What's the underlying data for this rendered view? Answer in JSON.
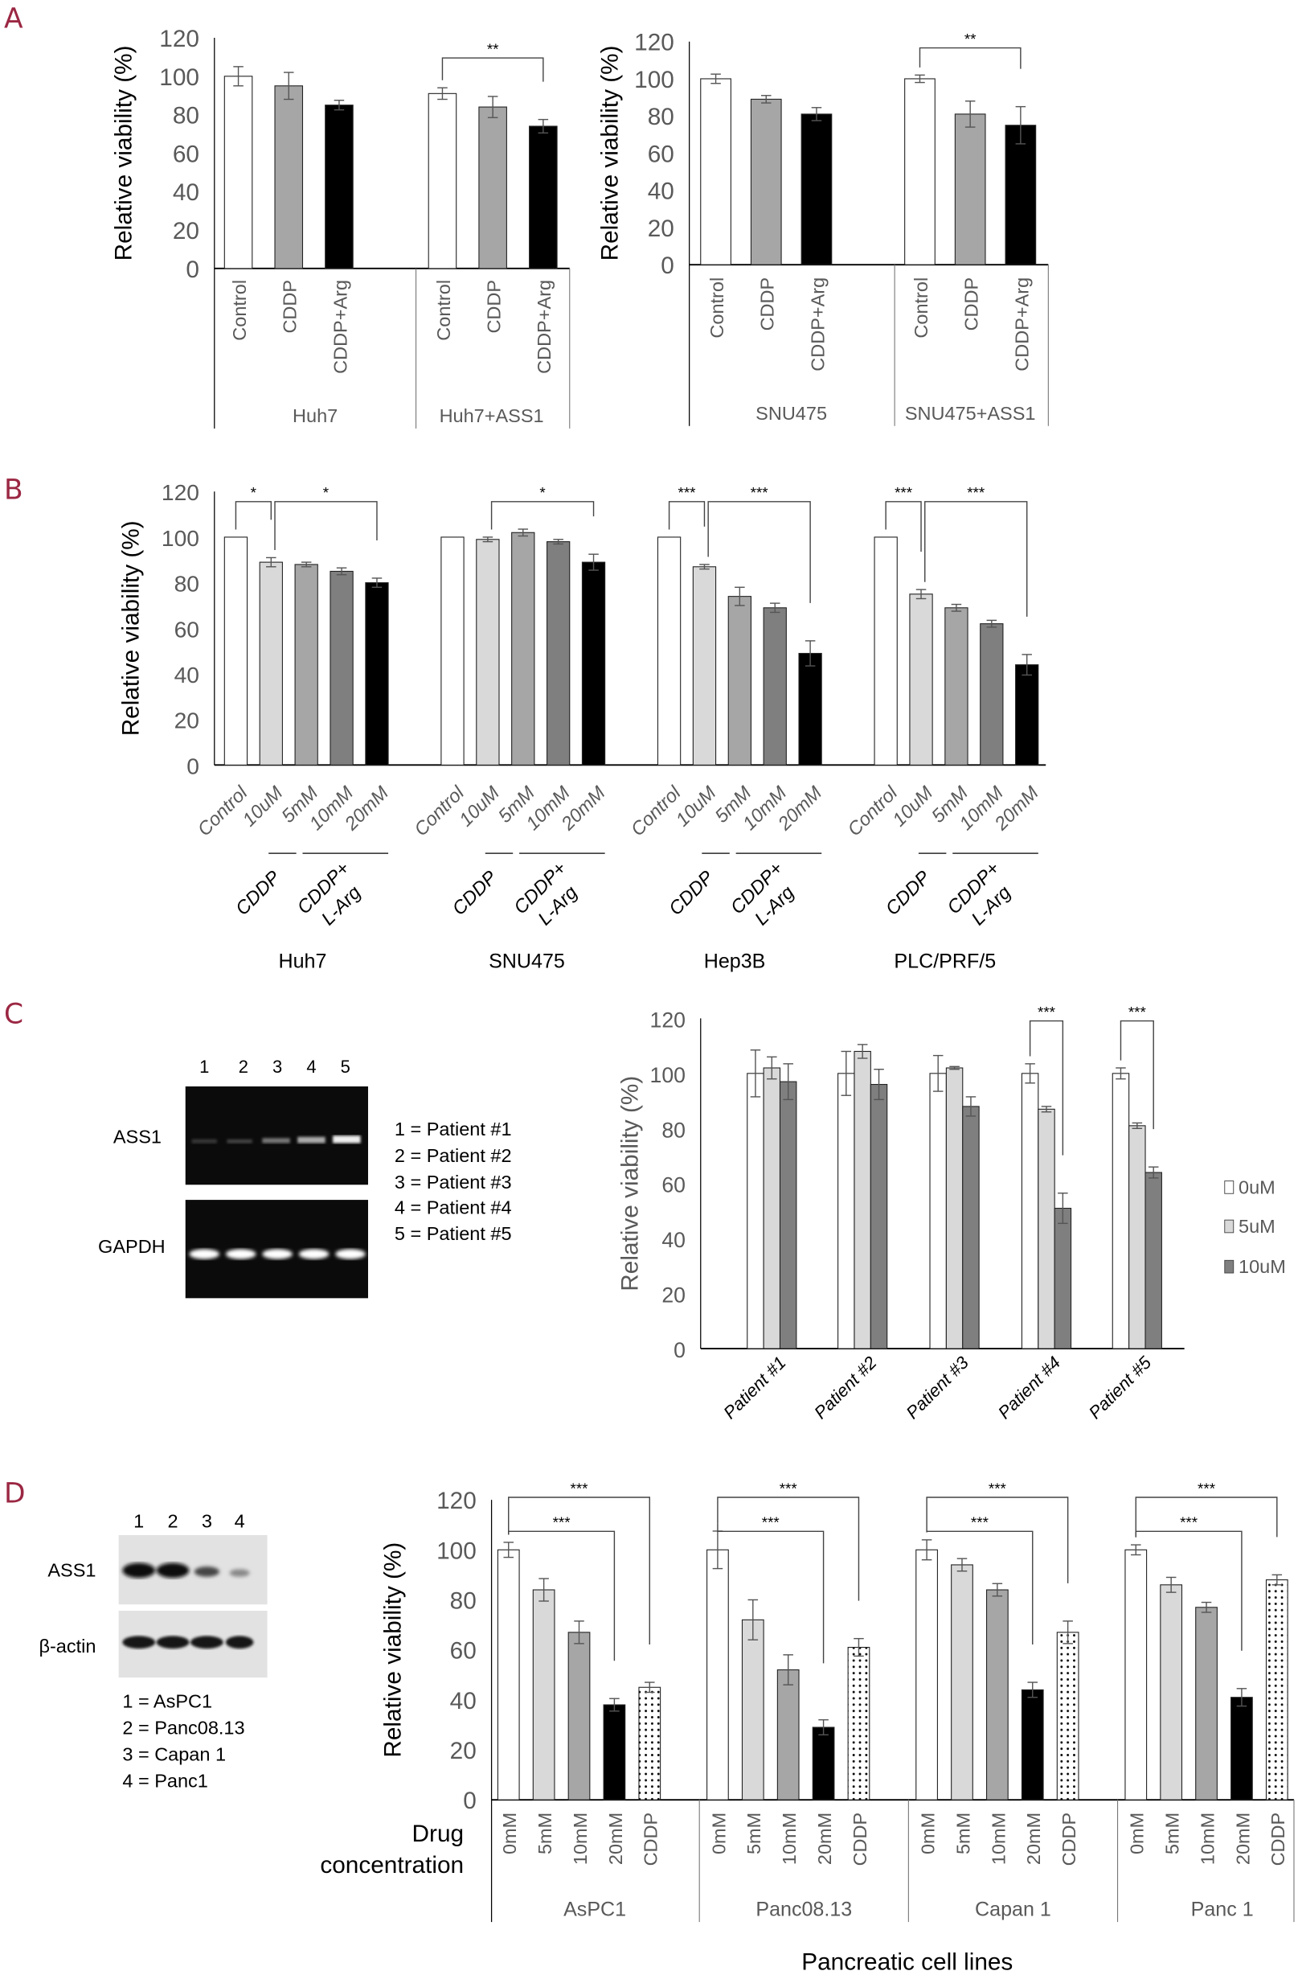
{
  "panels": {
    "labels": [
      "A",
      "B",
      "C",
      "D"
    ]
  },
  "gel_c": {
    "lanes": [
      "1",
      "2",
      "3",
      "4",
      "5"
    ],
    "rows": [
      "ASS1",
      "GAPDH"
    ],
    "legend": [
      "1 = Patient #1",
      "2 = Patient #2",
      "3 = Patient #3",
      "4 = Patient #4",
      "5 = Patient #5"
    ]
  },
  "blot_d": {
    "lanes": [
      "1",
      "2",
      "3",
      "4"
    ],
    "rows": [
      "ASS1",
      "β-actin"
    ],
    "legend": [
      "1 = AsPC1",
      "2 = Panc08.13",
      "3 = Capan 1",
      "4 = Panc1"
    ]
  },
  "chart_data": [
    {
      "id": "A-left",
      "type": "bar",
      "ylabel": "Relative viability (%)",
      "ylim": [
        0,
        120
      ],
      "yticks": [
        "0",
        "20",
        "40",
        "60",
        "80",
        "100",
        "120"
      ],
      "categories": [
        "Control",
        "CDDP",
        "CDDP+Arg"
      ],
      "colors": [
        "#ffffff",
        "#a6a6a6",
        "#000000"
      ],
      "groups": [
        {
          "name": "Huh7",
          "values": [
            100,
            95,
            85
          ],
          "errors": [
            5,
            7,
            2.5
          ]
        },
        {
          "name": "Huh7+ASS1",
          "values": [
            91,
            84,
            74
          ],
          "errors": [
            3,
            5.5,
            3.5
          ]
        }
      ],
      "significance": [
        {
          "group": 1,
          "from": 0,
          "to": 2,
          "label": "**"
        }
      ]
    },
    {
      "id": "A-right",
      "type": "bar",
      "ylabel": "Relative viability (%)",
      "ylim": [
        0,
        120
      ],
      "yticks": [
        "0",
        "20",
        "40",
        "60",
        "80",
        "100",
        "120"
      ],
      "categories": [
        "Control",
        "CDDP",
        "CDDP+Arg"
      ],
      "colors": [
        "#ffffff",
        "#a6a6a6",
        "#000000"
      ],
      "groups": [
        {
          "name": "SNU475",
          "values": [
            100,
            89,
            81
          ],
          "errors": [
            2.5,
            2,
            3.5
          ]
        },
        {
          "name": "SNU475+ASS1",
          "values": [
            100,
            81,
            75
          ],
          "errors": [
            2,
            7,
            10
          ]
        }
      ],
      "significance": [
        {
          "group": 1,
          "from": 0,
          "to": 2,
          "label": "**"
        }
      ]
    },
    {
      "id": "B",
      "type": "bar",
      "ylabel": "Relative viability (%)",
      "ylim": [
        0,
        120
      ],
      "yticks": [
        "0",
        "20",
        "40",
        "60",
        "80",
        "100",
        "120"
      ],
      "categories": [
        "Control",
        "10uM",
        "5mM",
        "10mM",
        "20mM"
      ],
      "treatments": {
        "cddp": "CDDP",
        "combo": [
          "CDDP+",
          "L-Arg"
        ]
      },
      "colors": [
        "#ffffff",
        "#d9d9d9",
        "#a6a6a6",
        "#7f7f7f",
        "#000000"
      ],
      "groups": [
        {
          "name": "Huh7",
          "values": [
            100,
            89,
            88,
            85,
            80
          ],
          "errors": [
            0,
            2,
            1,
            1.5,
            2
          ]
        },
        {
          "name": "SNU475",
          "values": [
            100,
            99,
            102,
            98,
            89
          ],
          "errors": [
            0,
            1,
            1.5,
            1,
            3.5
          ]
        },
        {
          "name": "Hep3B",
          "values": [
            100,
            87,
            74,
            69,
            49
          ],
          "errors": [
            0,
            1,
            4,
            2,
            5.5
          ]
        },
        {
          "name": "PLC/PRF/5",
          "values": [
            100,
            75,
            69,
            62,
            44
          ],
          "errors": [
            0,
            2,
            1.5,
            1.5,
            4.5
          ]
        }
      ],
      "significance": [
        {
          "group": 0,
          "from": 0,
          "to": 1,
          "label": "*"
        },
        {
          "group": 0,
          "from": 1,
          "to": 4,
          "label": "*"
        },
        {
          "group": 1,
          "from": 1,
          "to": 4,
          "label": "*"
        },
        {
          "group": 2,
          "from": 0,
          "to": 1,
          "label": "***"
        },
        {
          "group": 2,
          "from": 1,
          "to": 4,
          "label": "***"
        },
        {
          "group": 3,
          "from": 0,
          "to": 1,
          "label": "***"
        },
        {
          "group": 3,
          "from": 1,
          "to": 4,
          "label": "***"
        }
      ]
    },
    {
      "id": "C",
      "type": "bar",
      "ylabel": "Relative viability (%)",
      "ylim": [
        0,
        120
      ],
      "yticks": [
        "0",
        "20",
        "40",
        "60",
        "80",
        "100",
        "120"
      ],
      "categories": [
        "0uM",
        "5uM",
        "10uM"
      ],
      "legend": [
        "0uM",
        "5uM",
        "10uM"
      ],
      "colors": [
        "#ffffff",
        "#d9d9d9",
        "#7f7f7f"
      ],
      "groups": [
        {
          "name": "Patient #1",
          "values": [
            100,
            102,
            97
          ],
          "errors": [
            8.5,
            4,
            6.5
          ]
        },
        {
          "name": "Patient #2",
          "values": [
            100,
            108,
            96
          ],
          "errors": [
            8,
            2.5,
            5.5
          ]
        },
        {
          "name": "Patient #3",
          "values": [
            100,
            102,
            88
          ],
          "errors": [
            6.5,
            0.5,
            3.5
          ]
        },
        {
          "name": "Patient #4",
          "values": [
            100,
            87,
            51
          ],
          "errors": [
            3.5,
            1,
            5.5
          ]
        },
        {
          "name": "Patient #5",
          "values": [
            100,
            81,
            64
          ],
          "errors": [
            2,
            1,
            2
          ]
        }
      ],
      "significance": [
        {
          "group": 3,
          "from": 0,
          "to": 2,
          "label": "***"
        },
        {
          "group": 4,
          "from": 0,
          "to": 2,
          "label": "***"
        }
      ]
    },
    {
      "id": "D",
      "type": "bar",
      "ylabel": "Relative viability (%)",
      "ylim": [
        0,
        120
      ],
      "yticks": [
        "0",
        "20",
        "40",
        "60",
        "80",
        "100",
        "120"
      ],
      "categories": [
        "0mM",
        "5mM",
        "10mM",
        "20mM",
        "CDDP"
      ],
      "xlabel": "Pancreatic cell lines",
      "category_axis_label": [
        "Drug",
        "concentration"
      ],
      "colors": [
        "#ffffff",
        "#d9d9d9",
        "#a6a6a6",
        "#000000",
        "dotted"
      ],
      "groups": [
        {
          "name": "AsPC1",
          "values": [
            100,
            84,
            67,
            38,
            45
          ],
          "errors": [
            3,
            4.5,
            4.5,
            2.5,
            2
          ]
        },
        {
          "name": "Panc08.13",
          "values": [
            100,
            72,
            52,
            29,
            61
          ],
          "errors": [
            7.5,
            8,
            6,
            3,
            3.5
          ]
        },
        {
          "name": "Capan 1",
          "values": [
            100,
            94,
            84,
            44,
            67
          ],
          "errors": [
            4,
            2.5,
            2.5,
            3,
            4.5
          ]
        },
        {
          "name": "Panc 1",
          "values": [
            100,
            86,
            77,
            41,
            88
          ],
          "errors": [
            2,
            3,
            2,
            3.5,
            2
          ]
        }
      ],
      "significance": [
        {
          "group": 0,
          "from": 0,
          "to": 4,
          "label": "***"
        },
        {
          "group": 0,
          "from": 0,
          "to": 3,
          "label": "***"
        },
        {
          "group": 1,
          "from": 0,
          "to": 4,
          "label": "***"
        },
        {
          "group": 1,
          "from": 0,
          "to": 3,
          "label": "***"
        },
        {
          "group": 2,
          "from": 0,
          "to": 4,
          "label": "***"
        },
        {
          "group": 2,
          "from": 0,
          "to": 3,
          "label": "***"
        },
        {
          "group": 3,
          "from": 0,
          "to": 4,
          "label": "***"
        },
        {
          "group": 3,
          "from": 0,
          "to": 3,
          "label": "***"
        }
      ]
    }
  ]
}
